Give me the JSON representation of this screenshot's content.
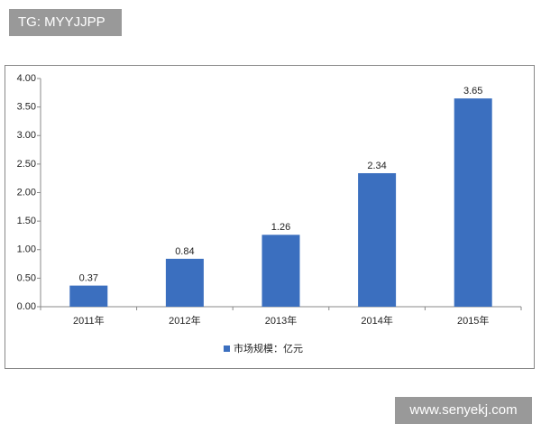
{
  "watermarks": [
    "TG: MYYJJPP",
    "www.senyekj.com"
  ],
  "chart_data": {
    "type": "bar",
    "categories": [
      "2011年",
      "2012年",
      "2013年",
      "2014年",
      "2015年"
    ],
    "series": [
      {
        "name": "市场规模：亿元",
        "color": "#3b6fbf",
        "values": [
          0.37,
          0.84,
          1.26,
          2.34,
          3.65
        ]
      }
    ],
    "ylim": [
      0,
      4
    ],
    "yticks": [
      {
        "value": 0,
        "label": "0.00"
      },
      {
        "value": 0.5,
        "label": "0.50"
      },
      {
        "value": 1,
        "label": "1.00"
      },
      {
        "value": 1.5,
        "label": "1.50"
      },
      {
        "value": 2,
        "label": "2.00"
      },
      {
        "value": 2.5,
        "label": "2.50"
      },
      {
        "value": 3,
        "label": "3.00"
      },
      {
        "value": 3.5,
        "label": "3.50"
      },
      {
        "value": 4,
        "label": "4.00"
      }
    ],
    "grid": false,
    "legend": "bottom"
  }
}
